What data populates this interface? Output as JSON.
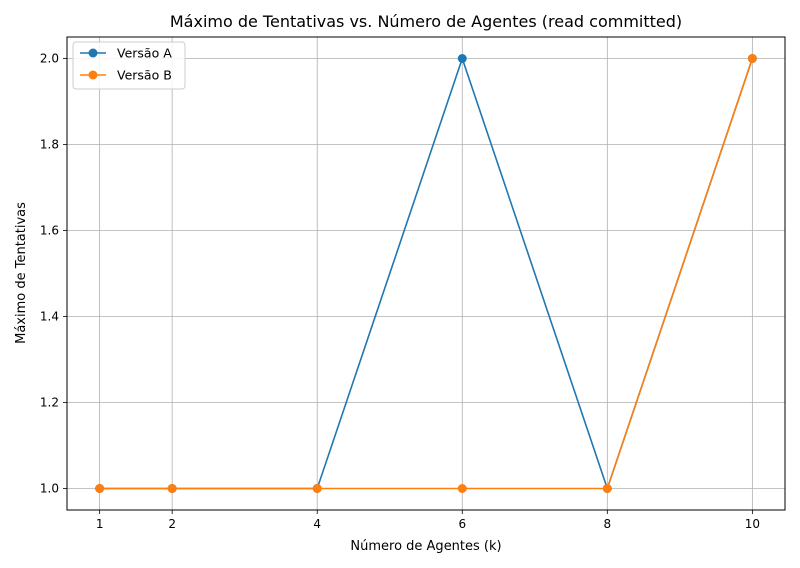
{
  "chart_data": {
    "type": "line",
    "title": "Máximo de Tentativas vs. Número de Agentes (read committed)",
    "xlabel": "Número de Agentes (k)",
    "ylabel": "Máximo de Tentativas",
    "x": [
      1,
      2,
      4,
      6,
      8,
      10
    ],
    "xticks": [
      "1",
      "2",
      "4",
      "6",
      "8",
      "10"
    ],
    "yticks": [
      "1.0",
      "1.2",
      "1.4",
      "1.6",
      "1.8",
      "2.0"
    ],
    "xlim": [
      0.55,
      10.45
    ],
    "ylim": [
      0.95,
      2.05
    ],
    "grid": true,
    "legend_position": "top-left",
    "series": [
      {
        "name": "Versão A",
        "color": "#1f77b4",
        "values": [
          1,
          1,
          1,
          2,
          1,
          2
        ]
      },
      {
        "name": "Versão B",
        "color": "#ff7f0e",
        "values": [
          1,
          1,
          1,
          1,
          1,
          2
        ]
      }
    ]
  }
}
